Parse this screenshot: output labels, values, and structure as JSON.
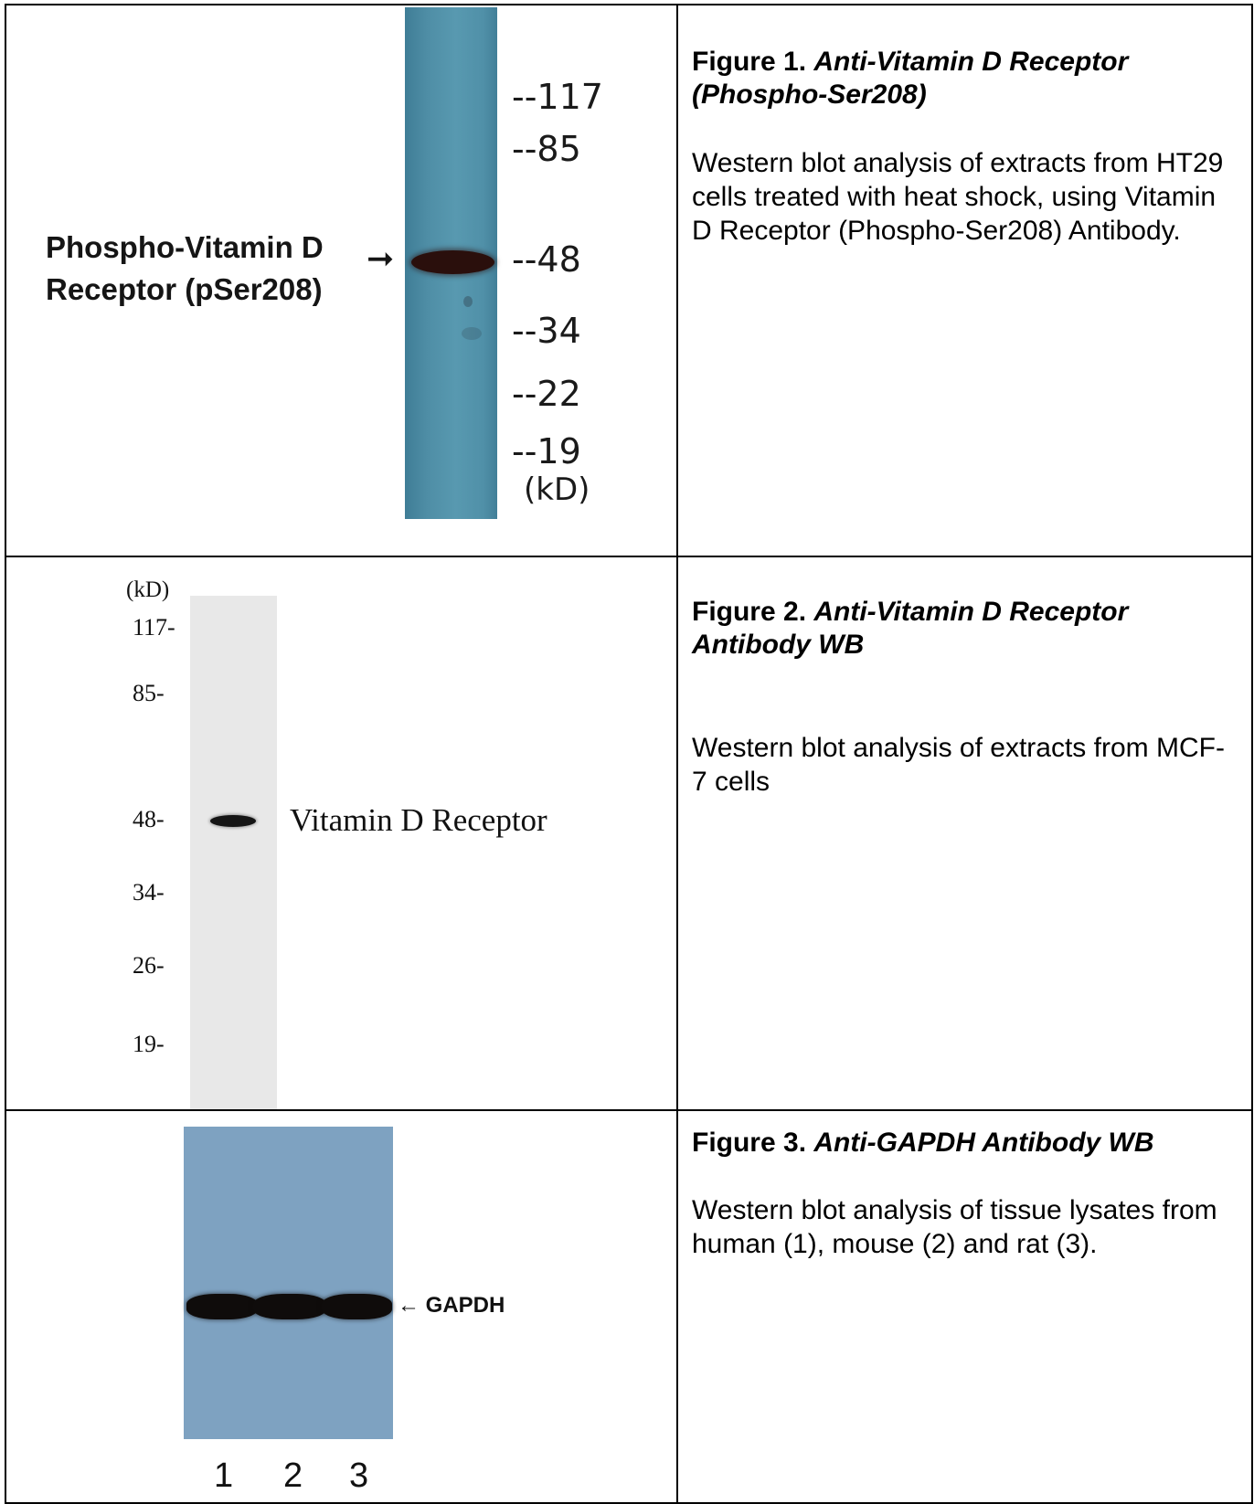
{
  "figure1": {
    "title_prefix": "Figure 1. ",
    "title_italic": "Anti-Vitamin D Receptor (Phospho-Ser208)",
    "description": "Western blot analysis of extracts from HT29 cells treated with heat shock, using Vitamin D Receptor (Phospho-Ser208) Antibody.",
    "band_label_line1": "Phospho-Vitamin D",
    "band_label_line2": "Receptor (pSer208)",
    "markers": [
      "--117",
      "--85",
      "--48",
      "--34",
      "--22",
      "--19"
    ],
    "unit": "(kD)"
  },
  "figure2": {
    "title_prefix": "Figure 2. ",
    "title_italic": "Anti-Vitamin D Receptor Antibody WB",
    "description": "Western blot analysis of extracts from MCF-7 cells",
    "unit": "(kD)",
    "markers": [
      "117-",
      "85-",
      "48-",
      "34-",
      "26-",
      "19-"
    ],
    "band_label": "Vitamin D Receptor"
  },
  "figure3": {
    "title_prefix": "Figure 3.  ",
    "title_italic": "Anti-GAPDH Antibody WB",
    "description": "Western blot analysis of tissue lysates from human (1), mouse (2) and rat (3).",
    "band_label": "GAPDH",
    "lanes": [
      "1",
      "2",
      "3"
    ]
  }
}
